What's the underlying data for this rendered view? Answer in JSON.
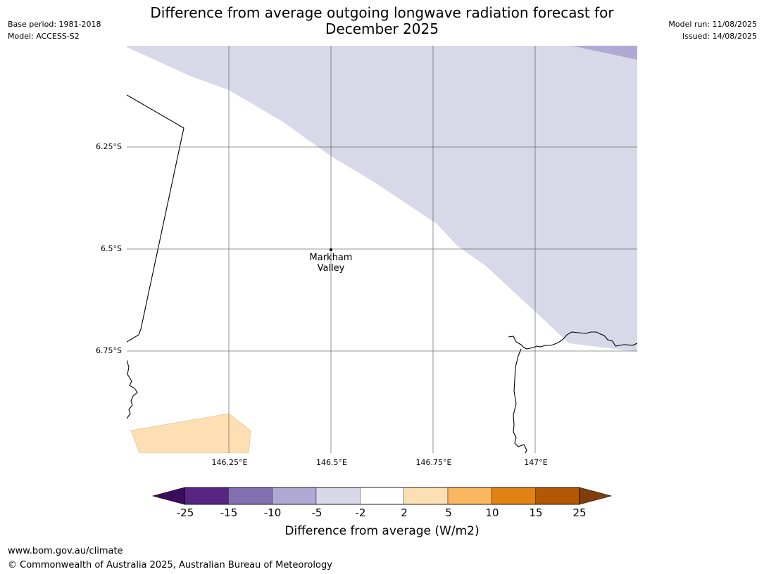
{
  "header": {
    "title_line1": "Difference from average outgoing longwave radiation forecast for",
    "title_line2": "December 2025",
    "base_period": "Base period: 1981-2018",
    "model": "Model: ACCESS-S2",
    "model_run": "Model run: 11/08/2025",
    "issued": "Issued: 14/08/2025"
  },
  "map": {
    "latitude_labels": [
      "6.25°S",
      "6.5°S",
      "6.75°S"
    ],
    "longitude_labels": [
      "146.25°E",
      "146.5°E",
      "146.75°E",
      "147°E"
    ],
    "place": {
      "name_line1": "Markham",
      "name_line2": "Valley"
    },
    "region_colors": {
      "neg_2_to_5": "#d8d8e9",
      "neg_5_to_10": "#b0a9d3",
      "pos_2_to_5": "#fddfb3"
    }
  },
  "colorbar": {
    "label": "Difference from average (W/m2)",
    "ticks": [
      "-25",
      "-15",
      "-10",
      "-5",
      "-2",
      "2",
      "5",
      "10",
      "15",
      "25"
    ],
    "under_color": "#3c0c5c",
    "over_color": "#7e3f0d",
    "colors": [
      "#582583",
      "#8370b0",
      "#b0a9d3",
      "#d8d8e9",
      "#ffffff",
      "#fddfb3",
      "#fbb660",
      "#e08214",
      "#b35806"
    ]
  },
  "footer": {
    "url": "www.bom.gov.au/climate",
    "copyright": "© Commonwealth of Australia 2025, Australian Bureau of Meteorology"
  }
}
